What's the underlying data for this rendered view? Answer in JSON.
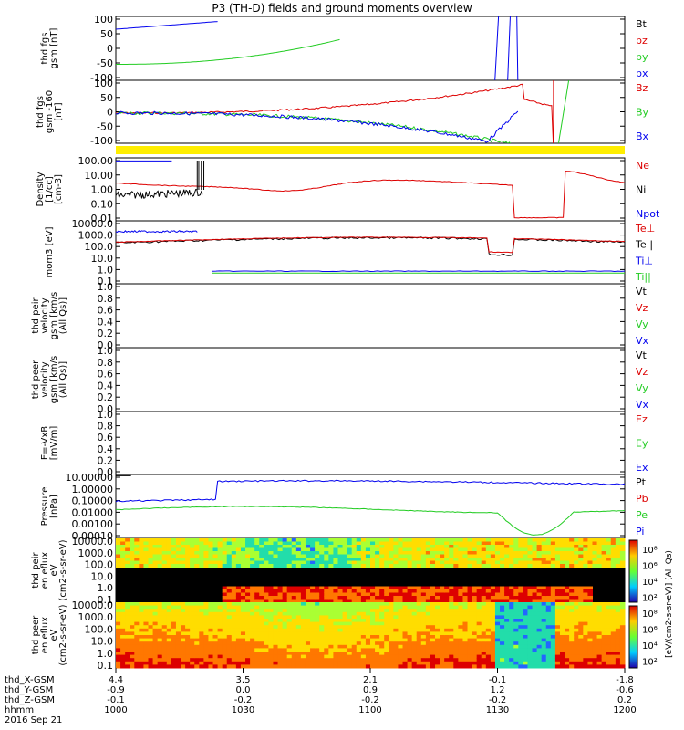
{
  "title": "P3 (TH-D) fields and ground moments overview",
  "colors": {
    "black": "#000000",
    "red": "#dd0000",
    "green": "#22cc22",
    "blue": "#0000ee",
    "yellow": "#ffee00"
  },
  "chart_data": [
    {
      "type": "line",
      "title": "P3 (TH-D) fields and ground moments overview",
      "ylabel": "thd fgs gsm [nT]",
      "ylim": [
        -100,
        100
      ],
      "yticks": [
        "100",
        "50",
        "0",
        "-50",
        "-100"
      ],
      "legend": [
        {
          "name": "Bt",
          "color": "black"
        },
        {
          "name": "bz",
          "color": "red"
        },
        {
          "name": "by",
          "color": "green"
        },
        {
          "name": "bx",
          "color": "blue"
        }
      ]
    },
    {
      "type": "line",
      "ylabel": "thd fgs gsm -160 [nT]",
      "ylim": [
        -120,
        120
      ],
      "yticks": [
        "100",
        "50",
        "0",
        "-50",
        "-100"
      ],
      "legend": [
        {
          "name": "Bz",
          "color": "red"
        },
        {
          "name": "By",
          "color": "green"
        },
        {
          "name": "Bx",
          "color": "blue"
        }
      ]
    },
    {
      "type": "line",
      "ylabel": "Density [1/cc] [cm-3]",
      "scale": "log",
      "yticks": [
        "100.00",
        "10.00",
        "1.00",
        "0.10",
        "0.01"
      ],
      "legend": [
        {
          "name": "Ne",
          "color": "red"
        },
        {
          "name": "Ni",
          "color": "black"
        },
        {
          "name": "Npot",
          "color": "blue"
        }
      ]
    },
    {
      "type": "line",
      "ylabel": "mom3 [eV]",
      "scale": "log",
      "yticks": [
        "10000.0",
        "1000.0",
        "100.0",
        "10.0",
        "1.0",
        "0.1"
      ],
      "legend": [
        {
          "name": "Te⊥",
          "color": "red"
        },
        {
          "name": "Te||",
          "color": "black"
        },
        {
          "name": "Ti⊥",
          "color": "blue"
        },
        {
          "name": "Ti||",
          "color": "green"
        }
      ]
    },
    {
      "type": "line",
      "ylabel": "thd peir velocity gsm [km/s (All Qs)]",
      "yticks": [
        "1.0",
        "0.8",
        "0.6",
        "0.4",
        "0.2",
        "0.0"
      ],
      "legend": [
        {
          "name": "Vt",
          "color": "black"
        },
        {
          "name": "Vz",
          "color": "red"
        },
        {
          "name": "Vy",
          "color": "green"
        },
        {
          "name": "Vx",
          "color": "blue"
        }
      ]
    },
    {
      "type": "line",
      "ylabel": "thd peer velocity gsm [km/s (All Qs)]",
      "yticks": [
        "1.0",
        "0.8",
        "0.6",
        "0.4",
        "0.2",
        "0.0"
      ],
      "legend": [
        {
          "name": "Vt",
          "color": "black"
        },
        {
          "name": "Vz",
          "color": "red"
        },
        {
          "name": "Vy",
          "color": "green"
        },
        {
          "name": "Vx",
          "color": "blue"
        }
      ]
    },
    {
      "type": "line",
      "ylabel": "E=-VxB [mV/m]",
      "yticks": [
        "1.0",
        "0.8",
        "0.6",
        "0.4",
        "0.2",
        "0.0"
      ],
      "legend": [
        {
          "name": "Ez",
          "color": "red"
        },
        {
          "name": "Ey",
          "color": "green"
        },
        {
          "name": "Ex",
          "color": "blue"
        }
      ]
    },
    {
      "type": "line",
      "ylabel": "Pressure [nPa]",
      "scale": "log",
      "yticks": [
        "10.00000",
        "1.00000",
        "0.10000",
        "0.01000",
        "0.00100",
        "0.00010"
      ],
      "legend": [
        {
          "name": "Pt",
          "color": "black"
        },
        {
          "name": "Pb",
          "color": "red"
        },
        {
          "name": "Pe",
          "color": "green"
        },
        {
          "name": "Pi",
          "color": "blue"
        }
      ]
    },
    {
      "type": "heatmap",
      "ylabel": "thd peir en eflux eV (cm2-s-sr-eV)",
      "scale": "log",
      "yticks": [
        "10000.0",
        "1000.0",
        "100.0",
        "10.0",
        "1.0",
        "0.1"
      ]
    },
    {
      "type": "heatmap",
      "ylabel": "thd peer en eflux eV (cm2-s-sr-eV)",
      "scale": "log",
      "yticks": [
        "10000.0",
        "1000.0",
        "100.0",
        "10.0",
        "1.0",
        "0.1"
      ]
    }
  ],
  "colorbar": {
    "label": "[eV/(cm2-s-sr-eV)] (All Qs)",
    "ticks": [
      "10⁸",
      "10⁶",
      "10⁴",
      "10²",
      "10⁸",
      "10⁶",
      "10⁴",
      "10²"
    ]
  },
  "xaxis": {
    "rows": [
      {
        "label": "thd_X-GSM",
        "values": [
          "4.4",
          "3.5",
          "2.1",
          "-0.1",
          "-1.8"
        ]
      },
      {
        "label": "thd_Y-GSM",
        "values": [
          "-0.9",
          "0.0",
          "0.9",
          "1.2",
          "-0.6"
        ]
      },
      {
        "label": "thd_Z-GSM",
        "values": [
          "-0.1",
          "-0.2",
          "-0.2",
          "-0.2",
          "0.2"
        ]
      },
      {
        "label": "hhmm",
        "values": [
          "1000",
          "1030",
          "1100",
          "1130",
          "1200"
        ]
      }
    ],
    "date": "2016 Sep 21"
  }
}
